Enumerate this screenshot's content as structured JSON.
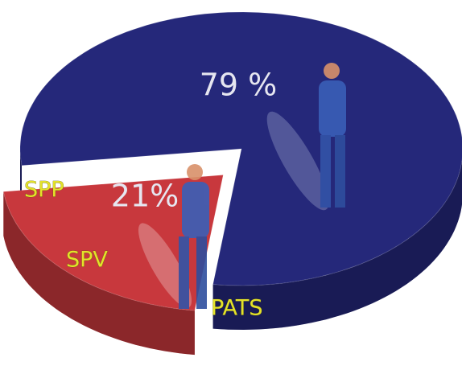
{
  "chart_data": {
    "type": "pie",
    "values": [
      79,
      21
    ],
    "value_labels": [
      "79 %",
      "21%"
    ],
    "colors": [
      "#25287a",
      "#c8383d"
    ],
    "annotations": [
      "SPP",
      "SPV",
      "PATS"
    ]
  }
}
